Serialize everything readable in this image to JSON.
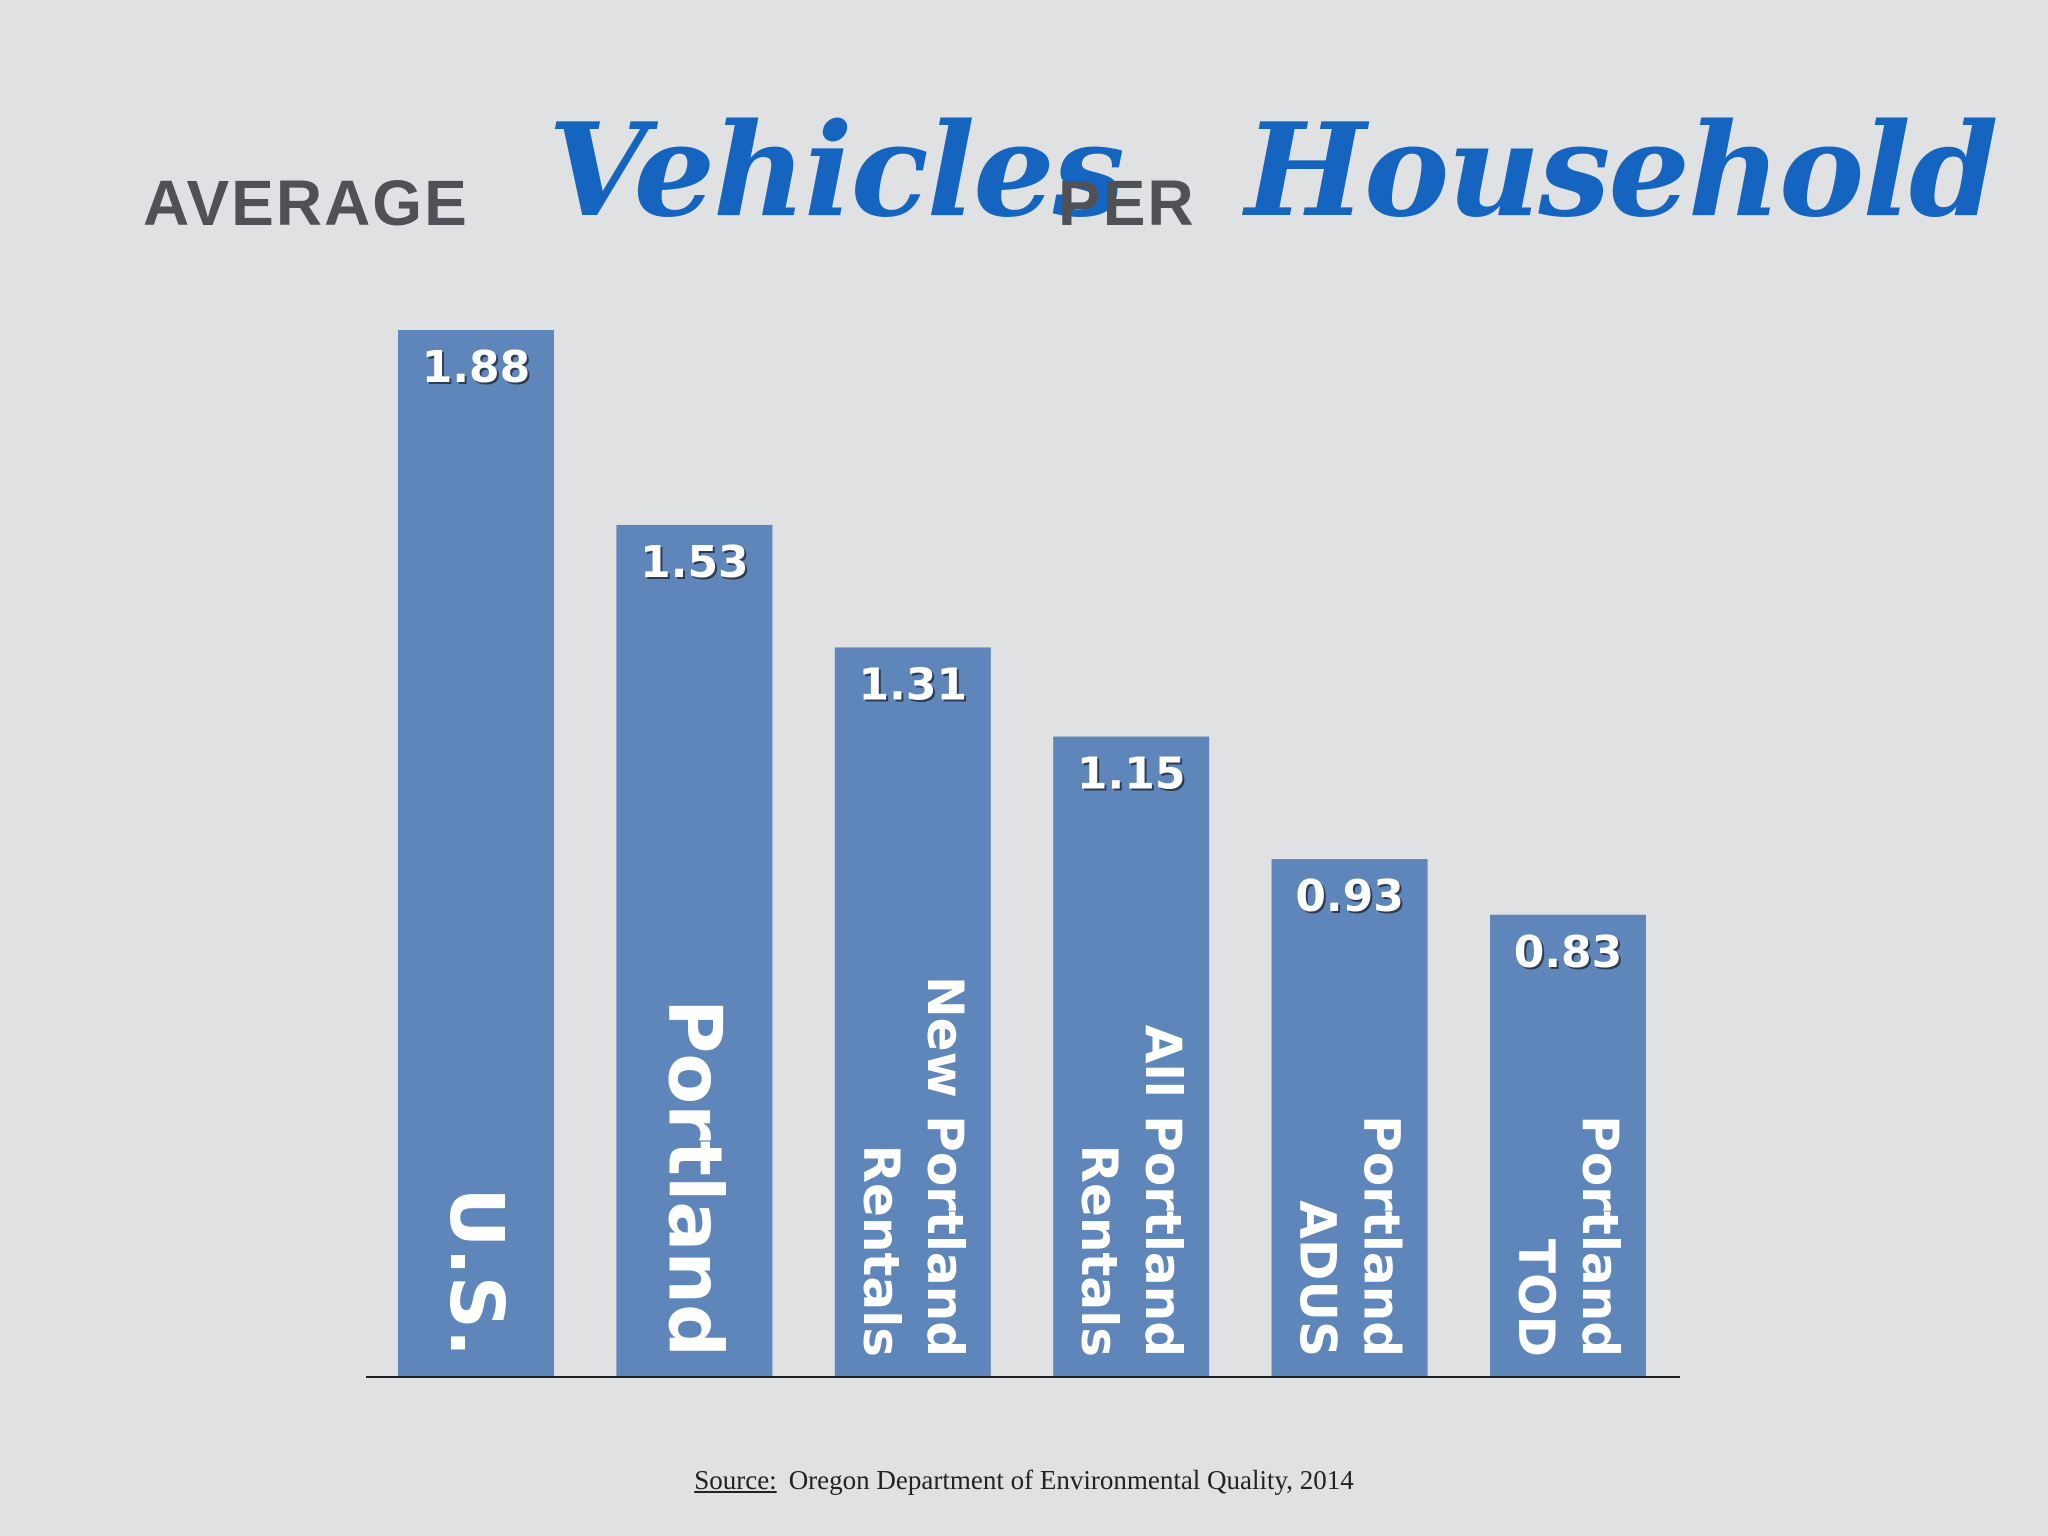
{
  "title": {
    "word1": "AVERAGE",
    "word2": "Vehicles",
    "word3": "PER",
    "word4": "Household"
  },
  "source": {
    "label": "Source:",
    "text": "Oregon Department of Environmental Quality, 2014"
  },
  "colors": {
    "background": "#e0e1e3",
    "bar": "#5f86bb",
    "title_plain": "#4f5156",
    "title_fancy": "#1565c0",
    "value_label": "#ffffff",
    "baseline": "#222222"
  },
  "chart_data": {
    "type": "bar",
    "categories": [
      [
        "U.S."
      ],
      [
        "Portland"
      ],
      [
        "New Portland",
        "Rentals"
      ],
      [
        "All Portland",
        "Rentals"
      ],
      [
        "Portland",
        "ADUS"
      ],
      [
        "Portland",
        "TOD"
      ]
    ],
    "values": [
      1.88,
      1.53,
      1.31,
      1.15,
      0.93,
      0.83
    ],
    "value_labels": [
      "1.88",
      "1.53",
      "1.31",
      "1.15",
      "0.93",
      "0.83"
    ],
    "title": "AVERAGE Vehicles PER Household",
    "xlabel": "",
    "ylabel": "",
    "ylim": [
      0,
      1.88
    ],
    "grid": false,
    "legend": "none"
  }
}
